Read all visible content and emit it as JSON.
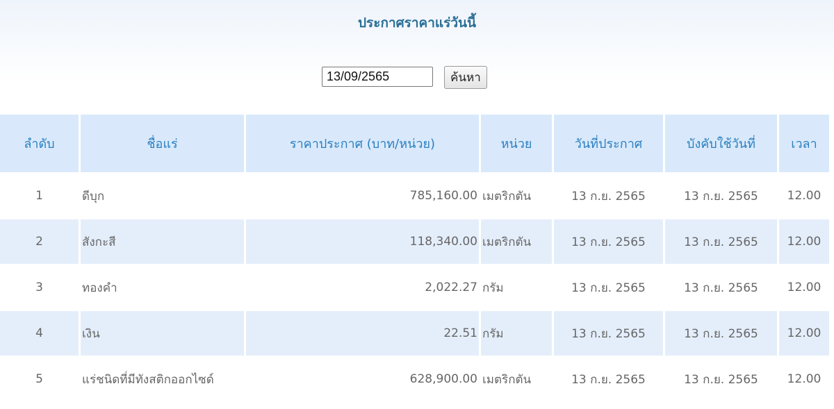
{
  "title": "ประกาศราคาแร่วันนี้",
  "search": {
    "date_value": "13/09/2565",
    "button_label": "ค้นหา"
  },
  "table": {
    "headers": [
      "ลำดับ",
      "ชื่อแร่",
      "ราคาประกาศ (บาท/หน่วย)",
      "หน่วย",
      "วันที่ประกาศ",
      "บังคับใช้วันที่",
      "เวลา"
    ],
    "rows": [
      {
        "no": "1",
        "name": "ดีบุก",
        "price": "785,160.00",
        "unit": "เมตริกตัน",
        "announce_date": "13 ก.ย. 2565",
        "effective_date": "13 ก.ย. 2565",
        "time": "12.00"
      },
      {
        "no": "2",
        "name": "สังกะสี",
        "price": "118,340.00",
        "unit": "เมตริกตัน",
        "announce_date": "13 ก.ย. 2565",
        "effective_date": "13 ก.ย. 2565",
        "time": "12.00"
      },
      {
        "no": "3",
        "name": "ทองคำ",
        "price": "2,022.27",
        "unit": "กรัม",
        "announce_date": "13 ก.ย. 2565",
        "effective_date": "13 ก.ย. 2565",
        "time": "12.00"
      },
      {
        "no": "4",
        "name": "เงิน",
        "price": "22.51",
        "unit": "กรัม",
        "announce_date": "13 ก.ย. 2565",
        "effective_date": "13 ก.ย. 2565",
        "time": "12.00"
      },
      {
        "no": "5",
        "name": "แร่ชนิดที่มีทังสติกออกไซด์",
        "price": "628,900.00",
        "unit": "เมตริกตัน",
        "announce_date": "13 ก.ย. 2565",
        "effective_date": "13 ก.ย. 2565",
        "time": "12.00"
      }
    ]
  }
}
